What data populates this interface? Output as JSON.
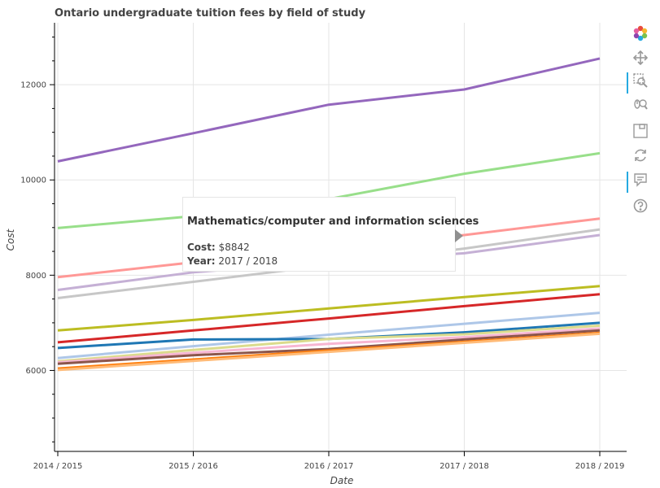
{
  "chart_data": {
    "type": "line",
    "title": "Ontario undergraduate tuition fees by field of study",
    "xlabel": "Date",
    "ylabel": "Cost",
    "categories": [
      "2014 / 2015",
      "2015 / 2016",
      "2016 / 2017",
      "2017 / 2018",
      "2018 / 2019"
    ],
    "yticks": [
      6000,
      8000,
      10000,
      12000
    ],
    "ylim": [
      4300,
      13300
    ],
    "grid": true,
    "series": [
      {
        "color": "#9467bd",
        "values": [
          10390,
          10980,
          11580,
          11900,
          12550
        ]
      },
      {
        "color": "#98df8a",
        "values": [
          8990,
          9240,
          9600,
          10130,
          10560
        ]
      },
      {
        "color": "#ff9896",
        "values": [
          7960,
          8270,
          8560,
          8842,
          9190
        ]
      },
      {
        "color": "#c7c7c7",
        "values": [
          7520,
          7860,
          8210,
          8560,
          8960
        ]
      },
      {
        "color": "#c5b0d5",
        "values": [
          7690,
          8060,
          8280,
          8460,
          8842
        ]
      },
      {
        "color": "#bcbd22",
        "values": [
          6840,
          7060,
          7300,
          7540,
          7770
        ]
      },
      {
        "color": "#d62728",
        "values": [
          6590,
          6840,
          7090,
          7350,
          7600
        ]
      },
      {
        "color": "#aec7e8",
        "values": [
          6260,
          6510,
          6750,
          6980,
          7210
        ]
      },
      {
        "color": "#1f77b4",
        "values": [
          6470,
          6650,
          6660,
          6800,
          7000
        ]
      },
      {
        "color": "#dbdb8d",
        "values": [
          6190,
          6430,
          6660,
          6760,
          6940
        ]
      },
      {
        "color": "#f7b6d2",
        "values": [
          6170,
          6370,
          6560,
          6700,
          6880
        ]
      },
      {
        "color": "#8c564b",
        "values": [
          6140,
          6320,
          6450,
          6650,
          6840
        ]
      },
      {
        "color": "#ff7f0e",
        "values": [
          6040,
          6230,
          6420,
          6600,
          6790
        ]
      },
      {
        "color": "#ffbb78",
        "values": [
          6010,
          6200,
          6390,
          6580,
          6770
        ]
      }
    ]
  },
  "tooltip": {
    "title": "Mathematics/computer and information sciences",
    "cost_key": "Cost:",
    "cost_value": "$8842",
    "year_key": "Year:",
    "year_value": "2017 / 2018"
  },
  "toolbar": {
    "tools": [
      "bokeh-logo-icon",
      "pan-icon",
      "box-zoom-icon",
      "wheel-zoom-icon",
      "save-icon",
      "reset-icon",
      "hover-icon",
      "help-icon"
    ],
    "active": [
      "box-zoom-icon",
      "hover-icon"
    ]
  }
}
